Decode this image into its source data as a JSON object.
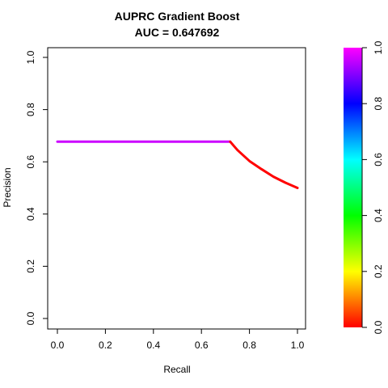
{
  "chart_data": {
    "type": "line",
    "title": "AUPRC Gradient Boost",
    "subtitle": "AUC = 0.647692",
    "xlabel": "Recall",
    "ylabel": "Precision",
    "xlim": [
      0,
      1
    ],
    "ylim": [
      0,
      1
    ],
    "x_ticks": [
      "0.0",
      "0.2",
      "0.4",
      "0.6",
      "0.8",
      "1.0"
    ],
    "y_ticks": [
      "0.0",
      "0.2",
      "0.4",
      "0.6",
      "0.8",
      "1.0"
    ],
    "series": [
      {
        "color_scale_value": 1.0,
        "color": "#cc00ff",
        "x": [
          0.0,
          0.72
        ],
        "y": [
          0.677,
          0.677
        ]
      },
      {
        "color_scale_value": 0.0,
        "color": "#ff0000",
        "x": [
          0.72,
          0.75,
          0.8,
          0.85,
          0.9,
          0.95,
          1.0
        ],
        "y": [
          0.677,
          0.645,
          0.603,
          0.572,
          0.543,
          0.52,
          0.5
        ]
      }
    ],
    "colorbar": {
      "range": [
        0,
        1
      ],
      "ticks": [
        "0.0",
        "0.2",
        "0.4",
        "0.6",
        "0.8",
        "1.0"
      ],
      "stops": [
        "#ff0000",
        "#ffff00",
        "#00ff00",
        "#00ffff",
        "#0000ff",
        "#ff00ff"
      ]
    },
    "grid": false,
    "legend": "none"
  }
}
